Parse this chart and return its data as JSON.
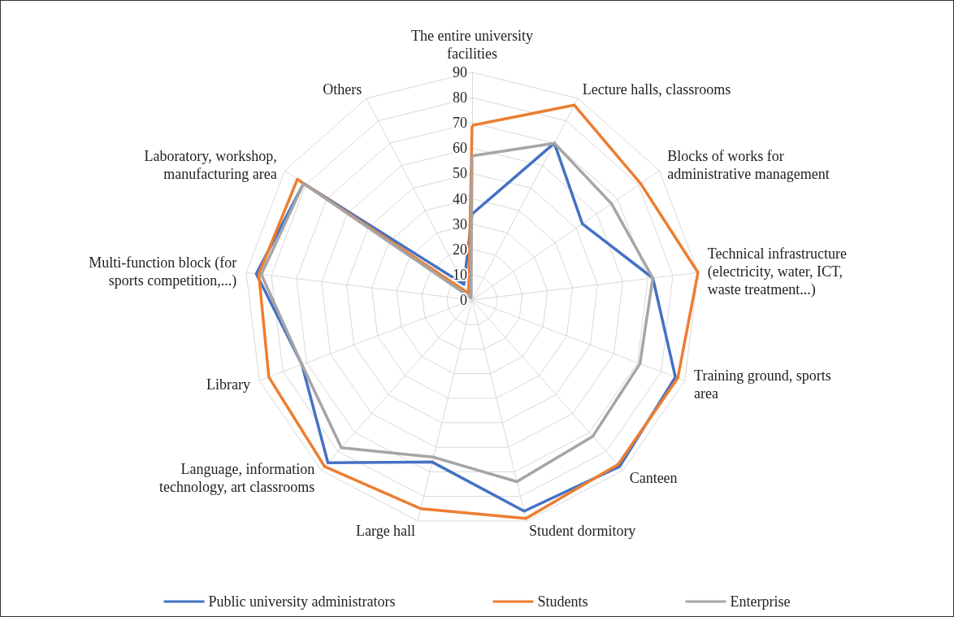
{
  "chart_data": {
    "type": "radar",
    "categories": [
      "The entire university facilities",
      "Lecture halls, classrooms",
      "Blocks of works for administrative management",
      "Technical infrastructure (electricity, water, ICT, waste treatment...)",
      "Training ground, sports area",
      "Canteen",
      "Student dormitory",
      "Large hall",
      "Language, information technology, art classrooms",
      "Library",
      "Multi-function block (for sports competition,...)",
      "Laboratory, workshop, manufacturing area",
      "Others"
    ],
    "series": [
      {
        "name": "Public university administrators",
        "color": "#4472c4",
        "values": [
          34,
          70,
          53,
          72,
          86,
          88,
          86,
          66,
          86,
          72,
          86,
          81,
          7
        ]
      },
      {
        "name": "Students",
        "color": "#ed7d31",
        "values": [
          69,
          87,
          81,
          90,
          87,
          87,
          89,
          85,
          88,
          86,
          85,
          84,
          3
        ]
      },
      {
        "name": "Enterprise",
        "color": "#a5a5a5",
        "values": [
          57,
          70,
          67,
          72,
          71,
          72,
          74,
          64,
          78,
          72,
          84,
          81,
          1
        ]
      }
    ],
    "ylim": [
      0,
      90
    ],
    "yticks": [
      0,
      10,
      20,
      30,
      40,
      50,
      60,
      70,
      80,
      90
    ],
    "grid": true,
    "legend": "bottom",
    "marker": "none"
  }
}
